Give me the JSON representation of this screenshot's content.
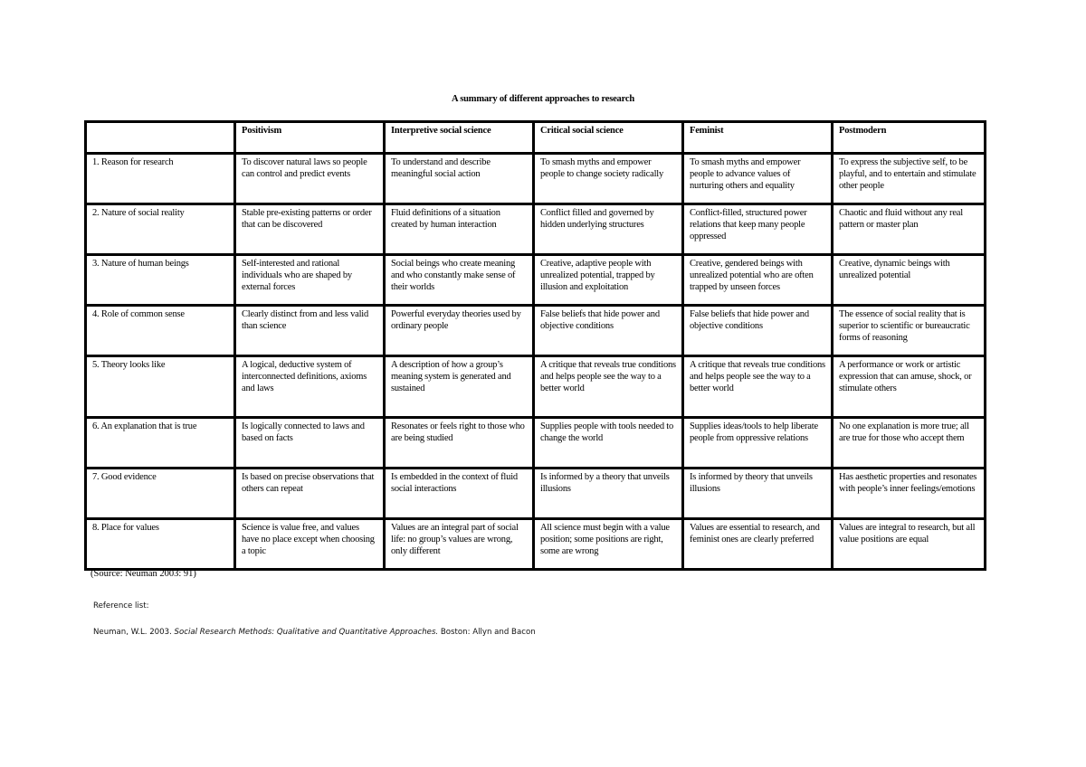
{
  "title": "A summary of different approaches to research",
  "table": {
    "headers": [
      "",
      "Positivism",
      "Interpretive social science",
      "Critical social science",
      "Feminist",
      "Postmodern"
    ],
    "rows": [
      [
        "1. Reason for research",
        "To discover natural laws so people can control and predict events",
        "To understand and describe meaningful social action",
        "To smash myths and empower people to change society radically",
        "To smash myths and empower people to advance values of nurturing others and equality",
        "To express the subjective self, to be playful, and to entertain and stimulate other people"
      ],
      [
        "2. Nature of social reality",
        "Stable pre-existing patterns or order that can be discovered",
        "Fluid definitions of a situation created by human interaction",
        "Conflict filled and governed by hidden underlying structures",
        "Conflict-filled, structured power relations that keep many people oppressed",
        "Chaotic and fluid without any real pattern or master plan"
      ],
      [
        "3. Nature of human beings",
        "Self-interested and rational individuals who are shaped by external forces",
        "Social beings who create meaning and who constantly make sense of their worlds",
        "Creative, adaptive people with unrealized potential, trapped by illusion and exploitation",
        "Creative, gendered beings with unrealized potential who are often trapped by unseen forces",
        "Creative, dynamic beings with unrealized potential"
      ],
      [
        "4. Role of common sense",
        "Clearly distinct from and less valid than science",
        "Powerful everyday theories used by ordinary people",
        "False beliefs that hide power and objective conditions",
        "False beliefs that hide power and objective conditions",
        "The essence of social reality that is superior to scientific or bureaucratic forms of reasoning"
      ],
      [
        "5. Theory looks like",
        "A logical, deductive system of interconnected definitions, axioms and laws",
        "A description of how a group’s meaning system is generated and sustained",
        "A critique that reveals true conditions and helps people see the way to a better world",
        "A critique that reveals true conditions and helps people see the way to a better world",
        "A performance or work or artistic expression that can amuse, shock, or stimulate others"
      ],
      [
        "6. An explanation that is true",
        "Is logically connected to laws and based on facts",
        "Resonates or feels right to those who are being studied",
        "Supplies people with tools needed to change the world",
        "Supplies ideas/tools to help liberate people from oppressive relations",
        "No one explanation is more true; all are true for those who accept them"
      ],
      [
        "7. Good evidence",
        "Is based on precise observations that others can repeat",
        "Is embedded in the context of fluid social interactions",
        "Is informed by a theory that unveils illusions",
        "Is informed by theory that unveils illusions",
        "Has aesthetic properties and resonates with people’s inner feelings/emotions"
      ],
      [
        "8. Place for values",
        "Science is value free, and values have no place except when choosing a topic",
        "Values are an integral part of social life: no group’s values are wrong, only different",
        "All science must begin with a value position; some positions are right, some are wrong",
        "Values are essential to research, and feminist ones are clearly preferred",
        "Values are integral to research, but all value positions are equal"
      ]
    ]
  },
  "source": "(Source: Neuman 2003: 91)",
  "reference": {
    "label": "Reference list:",
    "author_year": "Neuman, W.L. 2003. ",
    "book_title": "Social Research Methods: Qualitative and Quantitative Approaches.",
    "publisher": " Boston: Allyn and Bacon"
  }
}
